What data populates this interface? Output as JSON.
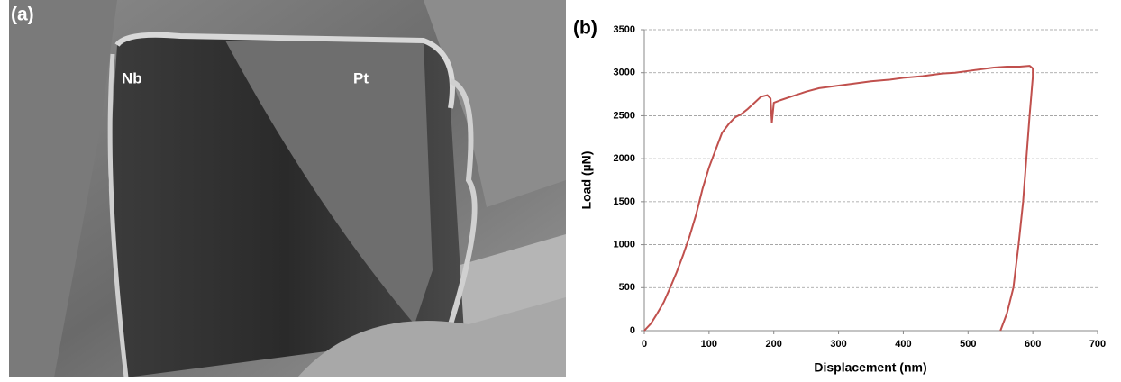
{
  "image": {
    "label": "(a)",
    "annotations": [
      "Nb",
      "Pt"
    ]
  },
  "chart_data": {
    "type": "line",
    "panel_label": "(b)",
    "x_label": "Displacement (nm)",
    "y_label": "Load (µN)",
    "x": [
      0,
      10,
      20,
      30,
      40,
      50,
      60,
      70,
      80,
      90,
      100,
      110,
      120,
      130,
      140,
      150,
      160,
      170,
      180,
      190,
      195,
      197,
      200,
      210,
      230,
      250,
      270,
      300,
      320,
      350,
      380,
      400,
      430,
      460,
      480,
      500,
      520,
      540,
      560,
      580,
      595,
      600,
      600,
      595,
      590,
      585,
      578,
      570,
      560,
      550
    ],
    "values": [
      0,
      80,
      200,
      330,
      500,
      680,
      880,
      1100,
      1350,
      1650,
      1900,
      2100,
      2300,
      2400,
      2480,
      2520,
      2580,
      2650,
      2720,
      2740,
      2700,
      2420,
      2650,
      2680,
      2730,
      2780,
      2820,
      2850,
      2870,
      2900,
      2920,
      2940,
      2960,
      2990,
      3000,
      3020,
      3040,
      3060,
      3070,
      3070,
      3080,
      3050,
      2950,
      2500,
      2000,
      1500,
      1000,
      500,
      200,
      0
    ],
    "color": "#c0504d",
    "xlim": [
      0,
      700
    ],
    "xticks": [
      0,
      100,
      200,
      300,
      400,
      500,
      600,
      700
    ],
    "ylim": [
      0,
      3500
    ],
    "yticks": [
      0,
      500,
      1000,
      1500,
      2000,
      2500,
      3000,
      3500
    ],
    "grid": true
  }
}
